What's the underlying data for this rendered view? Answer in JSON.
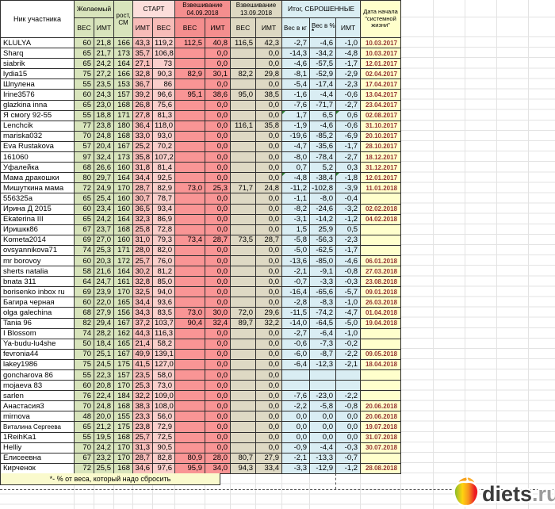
{
  "header": {
    "nick": "Ник участника",
    "desired": "Желаемый",
    "height": "рост, СМ",
    "start": "СТАРТ",
    "weigh1": "Взвешивание 04.09.2018",
    "weigh2": "Взвешивание 13.09.2018",
    "total": "Итог, СБРОШЕННЫЕ",
    "start_date": "Дата начала \"системной жизни\"",
    "weight": "ВЕС",
    "bmi": "ИМТ",
    "lost_kg": "Вес в кг",
    "lost_pct": "Вес в %",
    "lost_pct_mark": "*"
  },
  "columns": [
    "nick",
    "target_weight",
    "target_bmi",
    "height_cm",
    "start_bmi",
    "start_weight",
    "weigh_04_09_weight",
    "weigh_04_09_bmi",
    "weigh_13_09_weight",
    "weigh_13_09_bmi",
    "lost_kg",
    "lost_pct",
    "lost_bmi",
    "start_date"
  ],
  "rows": [
    [
      "KLULYA",
      "60",
      "21,8",
      "166",
      "43,3",
      "119,2",
      "112,5",
      "40,8",
      "116,5",
      "42,3",
      "-2,7",
      "-4,6",
      "-1,0",
      "10.03.2017"
    ],
    [
      "Sharq",
      "65",
      "21,7",
      "173",
      "35,7",
      "106,8",
      "",
      "0,0",
      "",
      "0,0",
      "-14,3",
      "-34,2",
      "-4,8",
      "10.03.2017"
    ],
    [
      "siabrik",
      "65",
      "24,2",
      "164",
      "27,1",
      "73",
      "",
      "0,0",
      "",
      "0,0",
      "-4,6",
      "-57,5",
      "-1,7",
      "12.01.2017"
    ],
    [
      "lydia15",
      "75",
      "27,2",
      "166",
      "32,8",
      "90,3",
      "82,9",
      "30,1",
      "82,2",
      "29,8",
      "-8,1",
      "-52,9",
      "-2,9",
      "02.04.2017"
    ],
    [
      "Шпулена",
      "55",
      "23,5",
      "153",
      "36,7",
      "86",
      "",
      "0,0",
      "",
      "0,0",
      "-5,4",
      "-17,4",
      "-2,3",
      "17.04.2017"
    ],
    [
      "Irine3576",
      "60",
      "24,3",
      "157",
      "39,2",
      "96,6",
      "95,1",
      "38,6",
      "95,0",
      "38,5",
      "-1,6",
      "-4,4",
      "-0,6",
      "13.04.2017"
    ],
    [
      "glazkina inna",
      "65",
      "23,0",
      "168",
      "26,8",
      "75,6",
      "",
      "0,0",
      "",
      "0,0",
      "-7,6",
      "-71,7",
      "-2,7",
      "23.04.2017"
    ],
    [
      "Я смогу 92-55",
      "55",
      "18,8",
      "171",
      "27,8",
      "81,3",
      "",
      "0,0",
      "",
      "0,0",
      "1,7",
      "6,5",
      "0,6",
      "02.08.2017"
    ],
    [
      "Lenchcik",
      "77",
      "23,8",
      "180",
      "36,4",
      "118,0",
      "",
      "0,0",
      "116,1",
      "35,8",
      "-1,9",
      "-4,6",
      "-0,6",
      "31.10.2017"
    ],
    [
      "mariska032",
      "70",
      "24,8",
      "168",
      "33,0",
      "93,0",
      "",
      "0,0",
      "",
      "0,0",
      "-19,6",
      "-85,2",
      "-6,9",
      "20.10.2017"
    ],
    [
      "Eva Rustakova",
      "57",
      "20,4",
      "167",
      "25,2",
      "70,2",
      "",
      "0,0",
      "",
      "0,0",
      "-4,7",
      "-35,6",
      "-1,7",
      "28.10.2017"
    ],
    [
      "161060",
      "97",
      "32,4",
      "173",
      "35,8",
      "107,2",
      "",
      "0,0",
      "",
      "0,0",
      "-8,0",
      "-78,4",
      "-2,7",
      "18.12.2017"
    ],
    [
      "Уфалейка",
      "68",
      "26,6",
      "160",
      "31,8",
      "81,4",
      "",
      "0,0",
      "",
      "0,0",
      "0,7",
      "5,2",
      "0,3",
      "31.12.2017"
    ],
    [
      "Мама дракошки",
      "80",
      "29,7",
      "164",
      "34,4",
      "92,5",
      "",
      "0,0",
      "",
      "0,0",
      "-4,8",
      "-38,4",
      "-1,8",
      "12.01.2017"
    ],
    [
      "Мишуткина мама",
      "72",
      "24,9",
      "170",
      "28,7",
      "82,9",
      "73,0",
      "25,3",
      "71,7",
      "24,8",
      "-11,2",
      "-102,8",
      "-3,9",
      "11.01.2018"
    ],
    [
      "556325a",
      "65",
      "25,4",
      "160",
      "30,7",
      "78,7",
      "",
      "0,0",
      "",
      "0,0",
      "-1,1",
      "-8,0",
      "-0,4",
      ""
    ],
    [
      "Ирина Д 2015",
      "60",
      "23,4",
      "160",
      "36,5",
      "93,4",
      "",
      "0,0",
      "",
      "0,0",
      "-8,2",
      "-24,6",
      "-3,2",
      "02.02.2018"
    ],
    [
      "Ekaterina III",
      "65",
      "24,2",
      "164",
      "32,3",
      "86,9",
      "",
      "0,0",
      "",
      "0,0",
      "-3,1",
      "-14,2",
      "-1,2",
      "04.02.2018"
    ],
    [
      "Иришкк86",
      "67",
      "23,7",
      "168",
      "25,8",
      "72,8",
      "",
      "0,0",
      "",
      "0,0",
      "1,5",
      "25,9",
      "0,5",
      ""
    ],
    [
      "Kometa2014",
      "69",
      "27,0",
      "160",
      "31,0",
      "79,3",
      "73,4",
      "28,7",
      "73,5",
      "28,7",
      "-5,8",
      "-56,3",
      "-2,3",
      ""
    ],
    [
      "ovsyannikova71",
      "74",
      "25,3",
      "171",
      "28,0",
      "82,0",
      "",
      "0,0",
      "",
      "0,0",
      "-5,0",
      "-62,5",
      "-1,7",
      ""
    ],
    [
      "mr borovoy",
      "60",
      "20,3",
      "172",
      "25,7",
      "76,0",
      "",
      "0,0",
      "",
      "0,0",
      "-13,6",
      "-85,0",
      "-4,6",
      "06.01.2018"
    ],
    [
      "sherts natalia",
      "58",
      "21,6",
      "164",
      "30,2",
      "81,2",
      "",
      "0,0",
      "",
      "0,0",
      "-2,1",
      "-9,1",
      "-0,8",
      "27.03.2018"
    ],
    [
      "bnata 311",
      "64",
      "24,7",
      "161",
      "32,8",
      "85,0",
      "",
      "0,0",
      "",
      "0,0",
      "-0,7",
      "-3,3",
      "-0,3",
      "23.08.2018"
    ],
    [
      "borisenko inbox ru",
      "69",
      "23,9",
      "170",
      "32,5",
      "94,0",
      "",
      "0,0",
      "",
      "0,0",
      "-16,4",
      "-65,6",
      "-5,7",
      "09.01.2018"
    ],
    [
      "Багира черная",
      "60",
      "22,0",
      "165",
      "34,4",
      "93,6",
      "",
      "0,0",
      "",
      "0,0",
      "-2,8",
      "-8,3",
      "-1,0",
      "26.03.2018"
    ],
    [
      "olga galechina",
      "68",
      "27,9",
      "156",
      "34,3",
      "83,5",
      "73,0",
      "30,0",
      "72,0",
      "29,6",
      "-11,5",
      "-74,2",
      "-4,7",
      "01.04.2018"
    ],
    [
      "Tania 96",
      "82",
      "29,4",
      "167",
      "37,2",
      "103,7",
      "90,4",
      "32,4",
      "89,7",
      "32,2",
      "-14,0",
      "-64,5",
      "-5,0",
      "19.04.2018"
    ],
    [
      "I Blossom",
      "74",
      "28,2",
      "162",
      "44,3",
      "116,3",
      "",
      "0,0",
      "",
      "0,0",
      "-2,7",
      "-6,4",
      "-1,0",
      ""
    ],
    [
      "Ya-budu-lu4she",
      "50",
      "18,4",
      "165",
      "21,4",
      "58,2",
      "",
      "0,0",
      "",
      "0,0",
      "-0,6",
      "-7,3",
      "-0,2",
      ""
    ],
    [
      "fevronia44",
      "70",
      "25,1",
      "167",
      "49,9",
      "139,1",
      "",
      "0,0",
      "",
      "0,0",
      "-6,0",
      "-8,7",
      "-2,2",
      "09.05.2018"
    ],
    [
      "lakey1986",
      "75",
      "24,5",
      "175",
      "41,5",
      "127,0",
      "",
      "0,0",
      "",
      "0,0",
      "-6,4",
      "-12,3",
      "-2,1",
      "18.04.2018"
    ],
    [
      "goncharova 86",
      "55",
      "22,3",
      "157",
      "23,5",
      "58,0",
      "",
      "0,0",
      "",
      "0,0",
      "",
      "",
      "",
      ""
    ],
    [
      "mojaeva 83",
      "60",
      "20,8",
      "170",
      "25,3",
      "73,0",
      "",
      "0,0",
      "",
      "0,0",
      "",
      "",
      "",
      ""
    ],
    [
      "sarlen",
      "76",
      "22,4",
      "184",
      "32,2",
      "109,0",
      "",
      "0,0",
      "",
      "0,0",
      "-7,6",
      "-23,0",
      "-2,2",
      ""
    ],
    [
      "Анастасия3",
      "70",
      "24,8",
      "168",
      "38,3",
      "108,0",
      "",
      "0,0",
      "",
      "0,0",
      "-2,2",
      "-5,8",
      "-0,8",
      "20.06.2018"
    ],
    [
      "mirnova",
      "48",
      "20,0",
      "155",
      "23,3",
      "56,0",
      "",
      "0,0",
      "",
      "0,0",
      "0,0",
      "0,0",
      "0,0",
      "20.06.2018"
    ],
    [
      "Виталина Сергеева",
      "65",
      "21,2",
      "175",
      "23,8",
      "72,9",
      "",
      "0,0",
      "",
      "0,0",
      "0,0",
      "0,0",
      "0,0",
      "19.07.2018"
    ],
    [
      "1ReihKa1",
      "55",
      "19,5",
      "168",
      "25,7",
      "72,5",
      "",
      "0,0",
      "",
      "0,0",
      "0,0",
      "0,0",
      "0,0",
      "31.07.2018"
    ],
    [
      "Helliy",
      "70",
      "24,2",
      "170",
      "31,3",
      "90,5",
      "",
      "0,0",
      "",
      "0,0",
      "-0,9",
      "-4,4",
      "-0,3",
      "30.07.2018"
    ],
    [
      "Елисеевна",
      "67",
      "23,2",
      "170",
      "28,7",
      "82,8",
      "80,9",
      "28,0",
      "80,7",
      "27,9",
      "-2,1",
      "-13,3",
      "-0,7",
      ""
    ],
    [
      "Кирченок",
      "72",
      "25,5",
      "168",
      "34,6",
      "97,6",
      "95,9",
      "34,0",
      "94,3",
      "33,4",
      "-3,3",
      "-12,9",
      "-1,2",
      "28.08.2018"
    ]
  ],
  "flag_rows": [
    7,
    13
  ],
  "footnote": "*- % от веса, который надо сбросить",
  "logo": {
    "brand": "diets",
    "tld": ".ru"
  },
  "colors": {
    "green": "#d8e4bc",
    "start_header": "#fcdedb",
    "start_bmi_col": "#f6bdb9",
    "start_weight_col": "#f9cfcb",
    "salmon": "#f99595",
    "tan": "#ded9c4",
    "blue": "#d9edf3",
    "date_yellow": "#ffffcc",
    "date_text": "#963634",
    "footnote_bg": "#fafacd",
    "flag_green": "#2e7d32",
    "logo_dark": "#3c3c3c",
    "logo_gray": "#9c9c9c",
    "apple_green": "#7cb82f",
    "apple_yellow": "#ffd40f",
    "apple_orange": "#f7941e",
    "apple_red": "#ed1c24"
  }
}
